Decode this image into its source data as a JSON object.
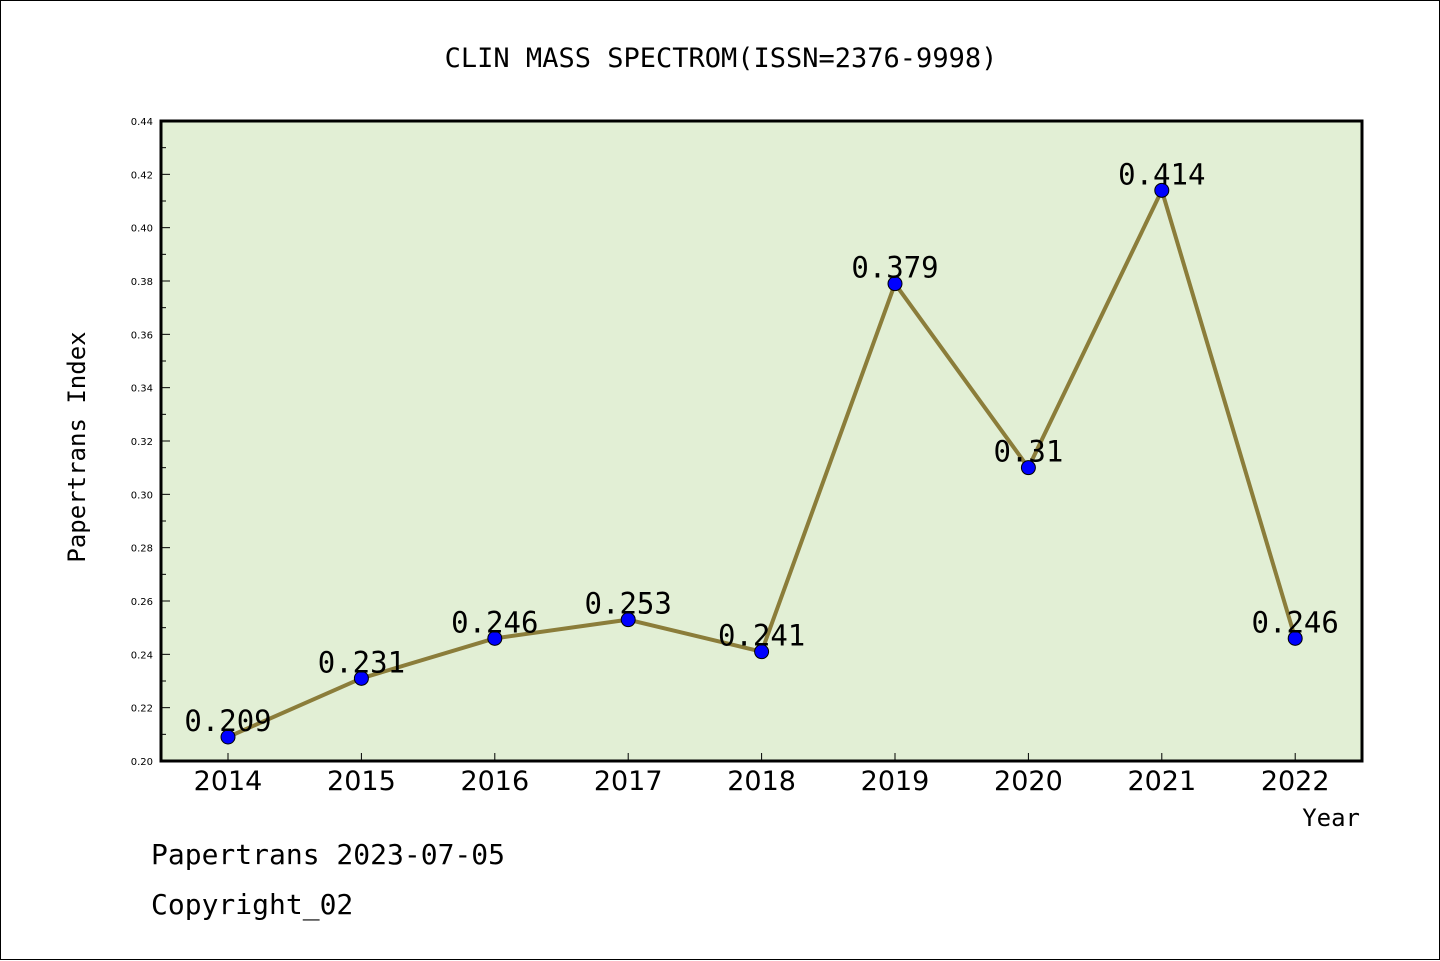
{
  "chart_data": {
    "type": "line",
    "title": "CLIN MASS SPECTROM(ISSN=2376-9998)",
    "xlabel": "Year",
    "ylabel": "Papertrans Index",
    "categories": [
      "2014",
      "2015",
      "2016",
      "2017",
      "2018",
      "2019",
      "2020",
      "2021",
      "2022"
    ],
    "values": [
      0.209,
      0.231,
      0.246,
      0.253,
      0.241,
      0.379,
      0.31,
      0.414,
      0.246
    ],
    "data_labels": [
      "0.209",
      "0.231",
      "0.246",
      "0.253",
      "0.241",
      "0.379",
      "0.31",
      "0.414",
      "0.246"
    ],
    "ylim": [
      0.2,
      0.44
    ],
    "yticks": [
      "0.20",
      "0.22",
      "0.24",
      "0.26",
      "0.28",
      "0.30",
      "0.32",
      "0.34",
      "0.36",
      "0.38",
      "0.40",
      "0.42",
      "0.44"
    ],
    "grid": false,
    "colors": {
      "plot_background": "#e2efd5",
      "line": "#8b7d3a",
      "marker": "#0000ff",
      "axis": "#000000"
    }
  },
  "footer": {
    "line1": "Papertrans 2023-07-05",
    "line2": "Copyright_02"
  }
}
